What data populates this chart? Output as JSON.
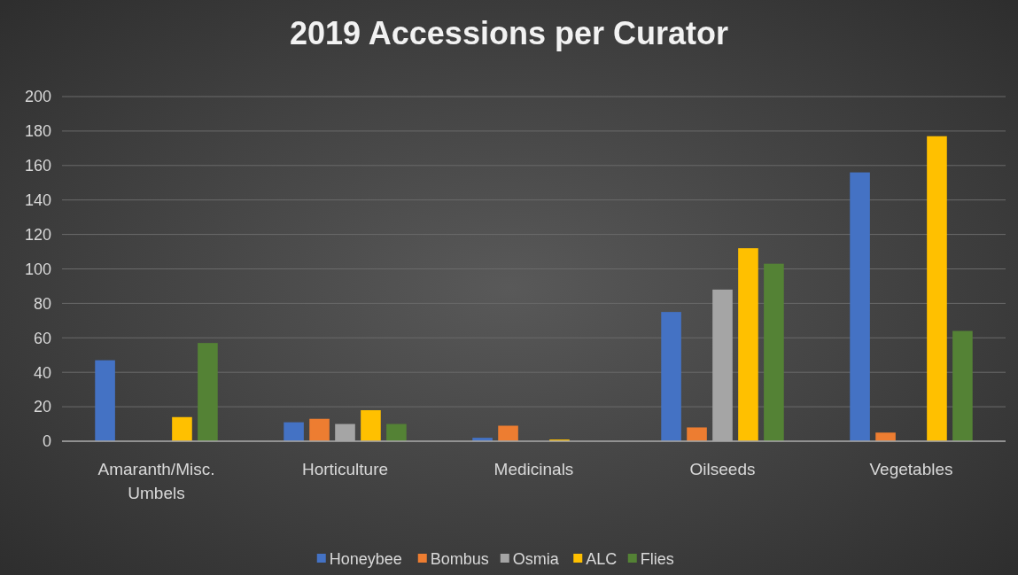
{
  "chart_data": {
    "type": "bar",
    "title": "2019 Accessions per Curator",
    "categories": [
      "Amaranth/Misc. Umbels",
      "Horticulture",
      "Medicinals",
      "Oilseeds",
      "Vegetables"
    ],
    "series": [
      {
        "name": "Honeybee",
        "color": "#4472c4",
        "values": [
          47,
          11,
          2,
          75,
          156
        ]
      },
      {
        "name": "Bombus",
        "color": "#ed7d31",
        "values": [
          0,
          13,
          9,
          8,
          5
        ]
      },
      {
        "name": "Osmia",
        "color": "#a5a5a5",
        "values": [
          0,
          10,
          0,
          88,
          0
        ]
      },
      {
        "name": "ALC",
        "color": "#ffc000",
        "values": [
          14,
          18,
          1,
          112,
          177
        ]
      },
      {
        "name": "Flies",
        "color": "#548235",
        "values": [
          57,
          10,
          0,
          103,
          64
        ]
      }
    ],
    "ylim": [
      0,
      200
    ],
    "yticks": [
      0,
      20,
      40,
      60,
      80,
      100,
      120,
      140,
      160,
      180,
      200
    ],
    "grid": "y",
    "legend": "bottom"
  }
}
